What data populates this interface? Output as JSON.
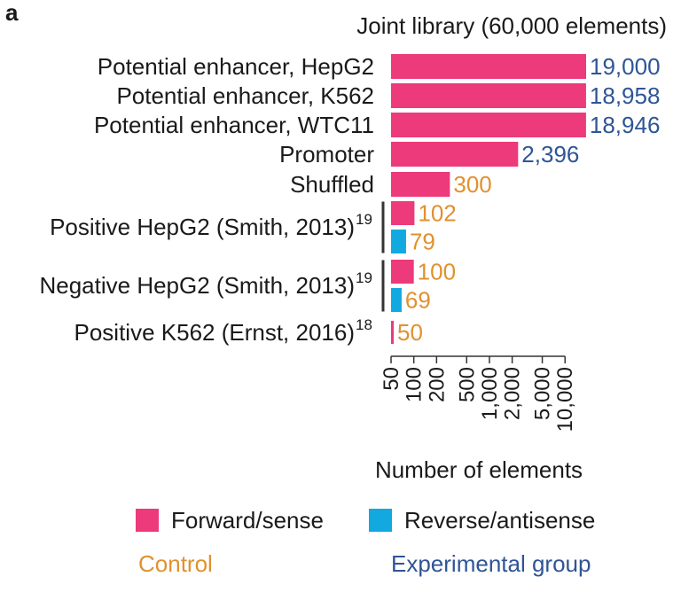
{
  "panel_label": "a",
  "colors": {
    "forward": "#EC3A7B",
    "reverse": "#12A9E0",
    "control": "#E0912F",
    "experimental": "#2E5596",
    "text": "#1a1a1a"
  },
  "chart_data": {
    "type": "bar",
    "orientation": "horizontal",
    "title": "Joint library (60,000 elements)",
    "xlabel": "Number of elements",
    "x_scale": "log",
    "xlim": [
      50,
      19000
    ],
    "xticks": [
      50,
      100,
      200,
      500,
      1000,
      2000,
      5000,
      10000
    ],
    "xtick_labels": [
      "50",
      "100",
      "200",
      "500",
      "1,000",
      "2,000",
      "5,000",
      "10,000"
    ],
    "rows": [
      {
        "label": "Potential enhancer, HepG2",
        "bars": [
          {
            "value": 19000,
            "label": "19,000",
            "strand": "forward",
            "group": "experimental"
          }
        ]
      },
      {
        "label": "Potential enhancer, K562",
        "bars": [
          {
            "value": 18958,
            "label": "18,958",
            "strand": "forward",
            "group": "experimental"
          }
        ]
      },
      {
        "label": "Potential enhancer, WTC11",
        "bars": [
          {
            "value": 18946,
            "label": "18,946",
            "strand": "forward",
            "group": "experimental"
          }
        ]
      },
      {
        "label": "Promoter",
        "bars": [
          {
            "value": 2396,
            "label": "2,396",
            "strand": "forward",
            "group": "experimental"
          }
        ]
      },
      {
        "label": "Shuffled",
        "bars": [
          {
            "value": 300,
            "label": "300",
            "strand": "forward",
            "group": "control"
          }
        ]
      },
      {
        "label": "Positive HepG2 (Smith, 2013)",
        "ref": "19",
        "bars": [
          {
            "value": 102,
            "label": "102",
            "strand": "forward",
            "group": "control"
          },
          {
            "value": 79,
            "label": "79",
            "strand": "reverse",
            "group": "control"
          }
        ]
      },
      {
        "label": "Negative HepG2 (Smith, 2013)",
        "ref": "19",
        "bars": [
          {
            "value": 100,
            "label": "100",
            "strand": "forward",
            "group": "control"
          },
          {
            "value": 69,
            "label": "69",
            "strand": "reverse",
            "group": "control"
          }
        ]
      },
      {
        "label": "Positive K562 (Ernst, 2016)",
        "ref": "18",
        "bars": [
          {
            "value": 50,
            "label": "50",
            "strand": "forward",
            "group": "control"
          }
        ]
      }
    ],
    "legend": {
      "forward_label": "Forward/sense",
      "reverse_label": "Reverse/antisense",
      "control_label": "Control",
      "experimental_label": "Experimental group"
    }
  }
}
